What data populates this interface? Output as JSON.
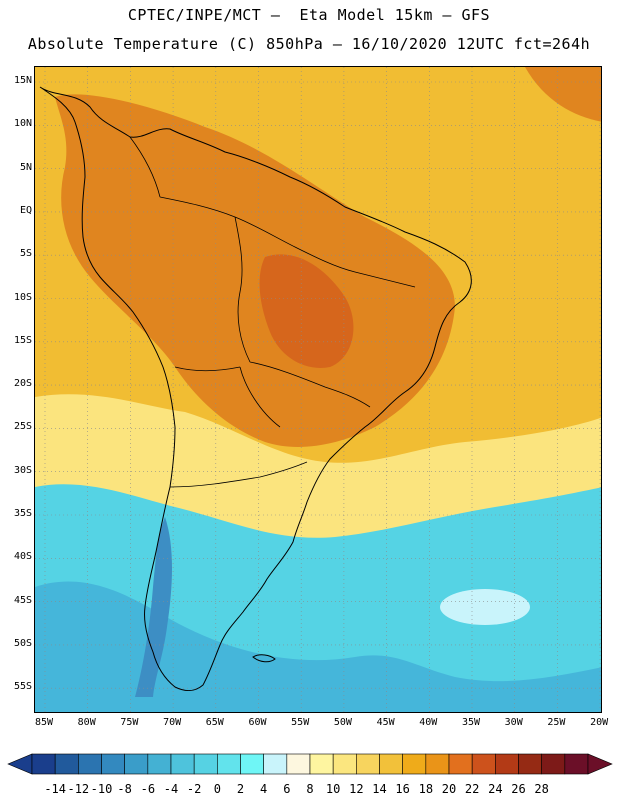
{
  "title_line1": "CPTEC/INPE/MCT –  Eta Model 15km – GFS",
  "title_line2": "Absolute Temperature (C) 850hPa – 16/10/2020 12UTC fct=264h",
  "map": {
    "lat_labels": [
      "15N",
      "10N",
      "5N",
      "EQ",
      "5S",
      "10S",
      "15S",
      "20S",
      "25S",
      "30S",
      "35S",
      "40S",
      "45S",
      "50S",
      "55S"
    ],
    "lon_labels": [
      "85W",
      "80W",
      "75W",
      "70W",
      "65W",
      "60W",
      "55W",
      "50W",
      "45W",
      "40W",
      "35W",
      "30W",
      "25W",
      "20W"
    ]
  },
  "colorbar": {
    "labels": [
      "-14",
      "-12",
      "-10",
      "-8",
      "-6",
      "-4",
      "-2",
      "0",
      "2",
      "4",
      "6",
      "8",
      "10",
      "12",
      "14",
      "16",
      "18",
      "20",
      "22",
      "24",
      "26",
      "28"
    ],
    "colors": [
      "#1a3e8c",
      "#215a9c",
      "#2b74b0",
      "#3389bf",
      "#3a9dc9",
      "#44b1d3",
      "#4ec3dc",
      "#56d2e3",
      "#62e3ec",
      "#6ff6f6",
      "#c9f4fb",
      "#fdf7df",
      "#fef5a0",
      "#fbe67f",
      "#f7d45e",
      "#f2c13a",
      "#efab1a",
      "#ea9418",
      "#e2701e",
      "#cd521c",
      "#b33a16",
      "#952a14",
      "#7d1a18",
      "#6b0f28"
    ],
    "under_color": "#1a3e8c",
    "over_color": "#6b0f28"
  },
  "fields": {
    "sea_warm": "#f1bd33",
    "land_hot": "#e0851f",
    "land_hotter": "#d6661c",
    "sea_cool": "#fbe47e",
    "sea_cold": "#55d3e4",
    "sea_colder": "#45b6da",
    "andes_cold": "#3d8ec4"
  }
}
